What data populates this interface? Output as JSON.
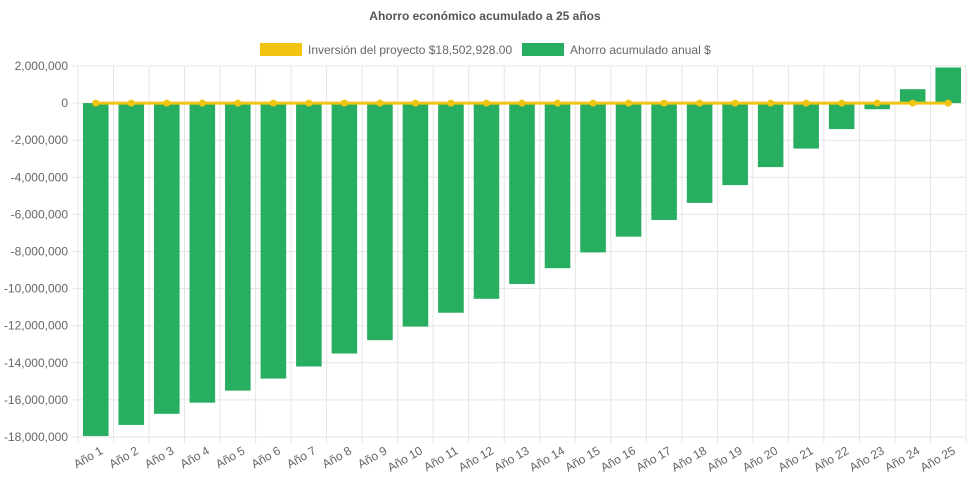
{
  "chart_data": {
    "type": "bar",
    "title": "Ahorro económico acumulado a 25 años",
    "categories": [
      "Año 1",
      "Año 2",
      "Año 3",
      "Año 4",
      "Año 5",
      "Año 6",
      "Año 7",
      "Año 8",
      "Año 9",
      "Año 10",
      "Año 11",
      "Año 12",
      "Año 13",
      "Año 14",
      "Año 15",
      "Año 16",
      "Año 17",
      "Año 18",
      "Año 19",
      "Año 20",
      "Año 21",
      "Año 22",
      "Año 23",
      "Año 24",
      "Año 25"
    ],
    "series": [
      {
        "name": "Inversión del proyecto $18,502,928.00",
        "kind": "line",
        "color": "#f1c40f",
        "values": [
          0,
          0,
          0,
          0,
          0,
          0,
          0,
          0,
          0,
          0,
          0,
          0,
          0,
          0,
          0,
          0,
          0,
          0,
          0,
          0,
          0,
          0,
          0,
          0,
          0
        ]
      },
      {
        "name": "Ahorro acumulado anual $",
        "kind": "bar",
        "color": "#27ae60",
        "values": [
          -17950000,
          -17350000,
          -16750000,
          -16150000,
          -15500000,
          -14850000,
          -14200000,
          -13500000,
          -12780000,
          -12050000,
          -11300000,
          -10550000,
          -9750000,
          -8900000,
          -8050000,
          -7200000,
          -6300000,
          -5380000,
          -4420000,
          -3450000,
          -2450000,
          -1400000,
          -330000,
          750000,
          1920000
        ]
      }
    ],
    "yticks": [
      "2,000,000",
      "0",
      "-2,000,000",
      "-4,000,000",
      "-6,000,000",
      "-8,000,000",
      "-10,000,000",
      "-12,000,000",
      "-14,000,000",
      "-16,000,000",
      "-18,000,000"
    ],
    "ytick_values": [
      2000000,
      0,
      -2000000,
      -4000000,
      -6000000,
      -8000000,
      -10000000,
      -12000000,
      -14000000,
      -16000000,
      -18000000
    ],
    "ylim": [
      -18000000,
      2000000
    ],
    "xlabel": "",
    "ylabel": "",
    "legend_position": "top-center",
    "grid": true
  }
}
